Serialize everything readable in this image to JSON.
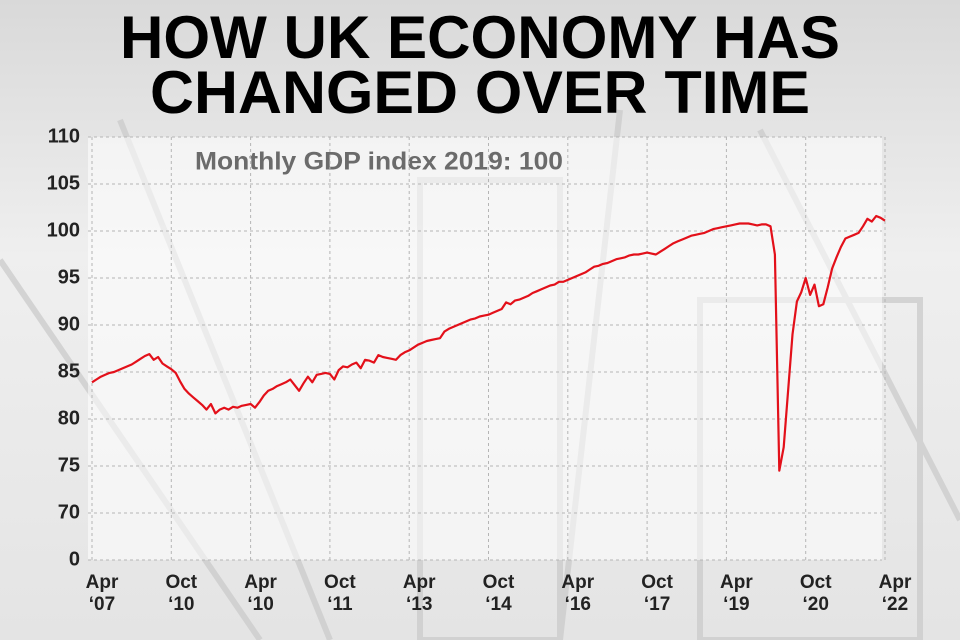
{
  "chart_data": {
    "type": "line",
    "title": [
      "HOW UK ECONOMY HAS",
      "CHANGED OVER TIME"
    ],
    "subtitle": "Monthly GDP index 2019: 100",
    "categories": [
      "Apr ‘07",
      null,
      null,
      null,
      null,
      null,
      null,
      null,
      null,
      null,
      null,
      null,
      null,
      null,
      null,
      null,
      null,
      null,
      "Oct ‘10",
      null,
      null,
      null,
      null,
      null,
      null,
      null,
      null,
      null,
      null,
      null,
      null,
      null,
      null,
      null,
      null,
      null,
      "Apr ‘10",
      null,
      null,
      null,
      null,
      null,
      null,
      null,
      null,
      null,
      null,
      null,
      null,
      null,
      null,
      null,
      null,
      null,
      "Oct ‘11",
      null,
      null,
      null,
      null,
      null,
      null,
      null,
      null,
      null,
      null,
      null,
      null,
      null,
      null,
      null,
      null,
      null,
      "Apr ‘13",
      null,
      null,
      null,
      null,
      null,
      null,
      null,
      null,
      null,
      null,
      null,
      null,
      null,
      null,
      null,
      null,
      null,
      "Oct ‘14",
      null,
      null,
      null,
      null,
      null,
      null,
      null,
      null,
      null,
      null,
      null,
      null,
      null,
      null,
      null,
      null,
      null,
      "Apr ‘16",
      null,
      null,
      null,
      null,
      null,
      null,
      null,
      null,
      null,
      null,
      null,
      null,
      null,
      null,
      null,
      null,
      null,
      "Oct ‘17",
      null,
      null,
      null,
      null,
      null,
      null,
      null,
      null,
      null,
      null,
      null,
      null,
      null,
      null,
      null,
      null,
      null,
      "Apr ‘19",
      null,
      null,
      null,
      null,
      null,
      null,
      null,
      null,
      null,
      null,
      null,
      null,
      null,
      null,
      null,
      null,
      null,
      "Oct ‘20",
      null,
      null,
      null,
      null,
      null,
      null,
      null,
      null,
      null,
      null,
      null,
      null,
      null,
      null,
      null,
      null,
      null,
      "Apr ‘22"
    ],
    "series": [
      {
        "color": "#e3101a",
        "values": [
          83.9,
          84.2,
          84.5,
          84.7,
          84.9,
          85.0,
          85.2,
          85.4,
          85.6,
          85.8,
          86.1,
          86.4,
          86.7,
          86.9,
          86.3,
          86.6,
          85.9,
          85.6,
          85.3,
          84.9,
          84.0,
          83.2,
          82.7,
          82.3,
          81.9,
          81.5,
          81.0,
          81.6,
          80.6,
          81.0,
          81.2,
          81.0,
          81.3,
          81.2,
          81.4,
          81.5,
          81.6,
          81.2,
          81.8,
          82.5,
          83.0,
          83.2,
          83.5,
          83.7,
          83.9,
          84.2,
          83.6,
          83.0,
          83.8,
          84.5,
          83.9,
          84.7,
          84.8,
          84.9,
          84.8,
          84.2,
          85.2,
          85.6,
          85.5,
          85.8,
          86.0,
          85.4,
          86.3,
          86.2,
          86.0,
          86.8,
          86.6,
          86.5,
          86.4,
          86.3,
          86.8,
          87.1,
          87.3,
          87.6,
          87.9,
          88.1,
          88.3,
          88.4,
          88.5,
          88.6,
          89.3,
          89.6,
          89.8,
          90.0,
          90.2,
          90.4,
          90.6,
          90.7,
          90.9,
          91.0,
          91.1,
          91.3,
          91.5,
          91.7,
          92.4,
          92.2,
          92.6,
          92.7,
          92.9,
          93.1,
          93.4,
          93.6,
          93.8,
          94.0,
          94.2,
          94.3,
          94.6,
          94.6,
          94.8,
          95.0,
          95.2,
          95.4,
          95.6,
          95.9,
          96.2,
          96.3,
          96.5,
          96.6,
          96.8,
          97.0,
          97.1,
          97.2,
          97.4,
          97.5,
          97.5,
          97.6,
          97.7,
          97.6,
          97.5,
          97.8,
          98.1,
          98.4,
          98.7,
          98.9,
          99.1,
          99.3,
          99.5,
          99.6,
          99.7,
          99.8,
          100.0,
          100.2,
          100.3,
          100.4,
          100.5,
          100.6,
          100.7,
          100.8,
          100.8,
          100.8,
          100.7,
          100.6,
          100.7,
          100.7,
          100.5,
          97.5,
          74.5,
          77.0,
          83.0,
          89.0,
          92.5,
          93.5,
          95.0,
          93.2,
          94.3,
          92.0,
          92.2,
          94.0,
          96.0,
          97.2,
          98.3,
          99.2,
          99.4,
          99.6,
          99.8,
          100.5,
          101.3,
          101.0,
          101.6,
          101.4,
          101.1
        ]
      }
    ],
    "ylim": [
      0,
      110
    ],
    "yticks": [
      0,
      70,
      75,
      80,
      85,
      90,
      95,
      100,
      105,
      110
    ],
    "axis_break": true,
    "grid": true
  }
}
